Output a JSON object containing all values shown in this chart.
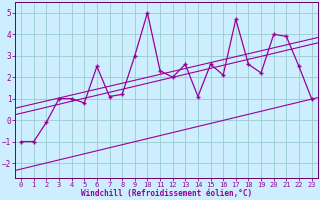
{
  "xlabel": "Windchill (Refroidissement éolien,°C)",
  "background_color": "#cceeff",
  "grid_color": "#99cccc",
  "line_color": "#990099",
  "spine_color": "#660066",
  "xlim": [
    -0.5,
    23.5
  ],
  "ylim": [
    -2.7,
    5.5
  ],
  "xticks": [
    0,
    1,
    2,
    3,
    4,
    5,
    6,
    7,
    8,
    9,
    10,
    11,
    12,
    13,
    14,
    15,
    16,
    17,
    18,
    19,
    20,
    21,
    22,
    23
  ],
  "yticks": [
    -2,
    -1,
    0,
    1,
    2,
    3,
    4,
    5
  ],
  "data_x": [
    0,
    1,
    2,
    3,
    4,
    5,
    6,
    7,
    8,
    9,
    10,
    11,
    12,
    13,
    14,
    15,
    16,
    17,
    18,
    19,
    20,
    21,
    22,
    23
  ],
  "data_y": [
    -1,
    -1,
    -0.1,
    1.0,
    1.0,
    0.8,
    2.5,
    1.1,
    1.2,
    3.0,
    5.0,
    2.3,
    2.0,
    2.6,
    1.1,
    2.6,
    2.1,
    4.7,
    2.6,
    2.2,
    4.0,
    3.9,
    2.5,
    1.0
  ],
  "reg_line1": [
    [
      -0.5,
      0.25
    ],
    [
      23.5,
      3.6
    ]
  ],
  "reg_line2": [
    [
      -0.5,
      0.55
    ],
    [
      23.5,
      3.85
    ]
  ],
  "reg_line3": [
    [
      -0.5,
      -2.35
    ],
    [
      23.5,
      1.05
    ]
  ]
}
